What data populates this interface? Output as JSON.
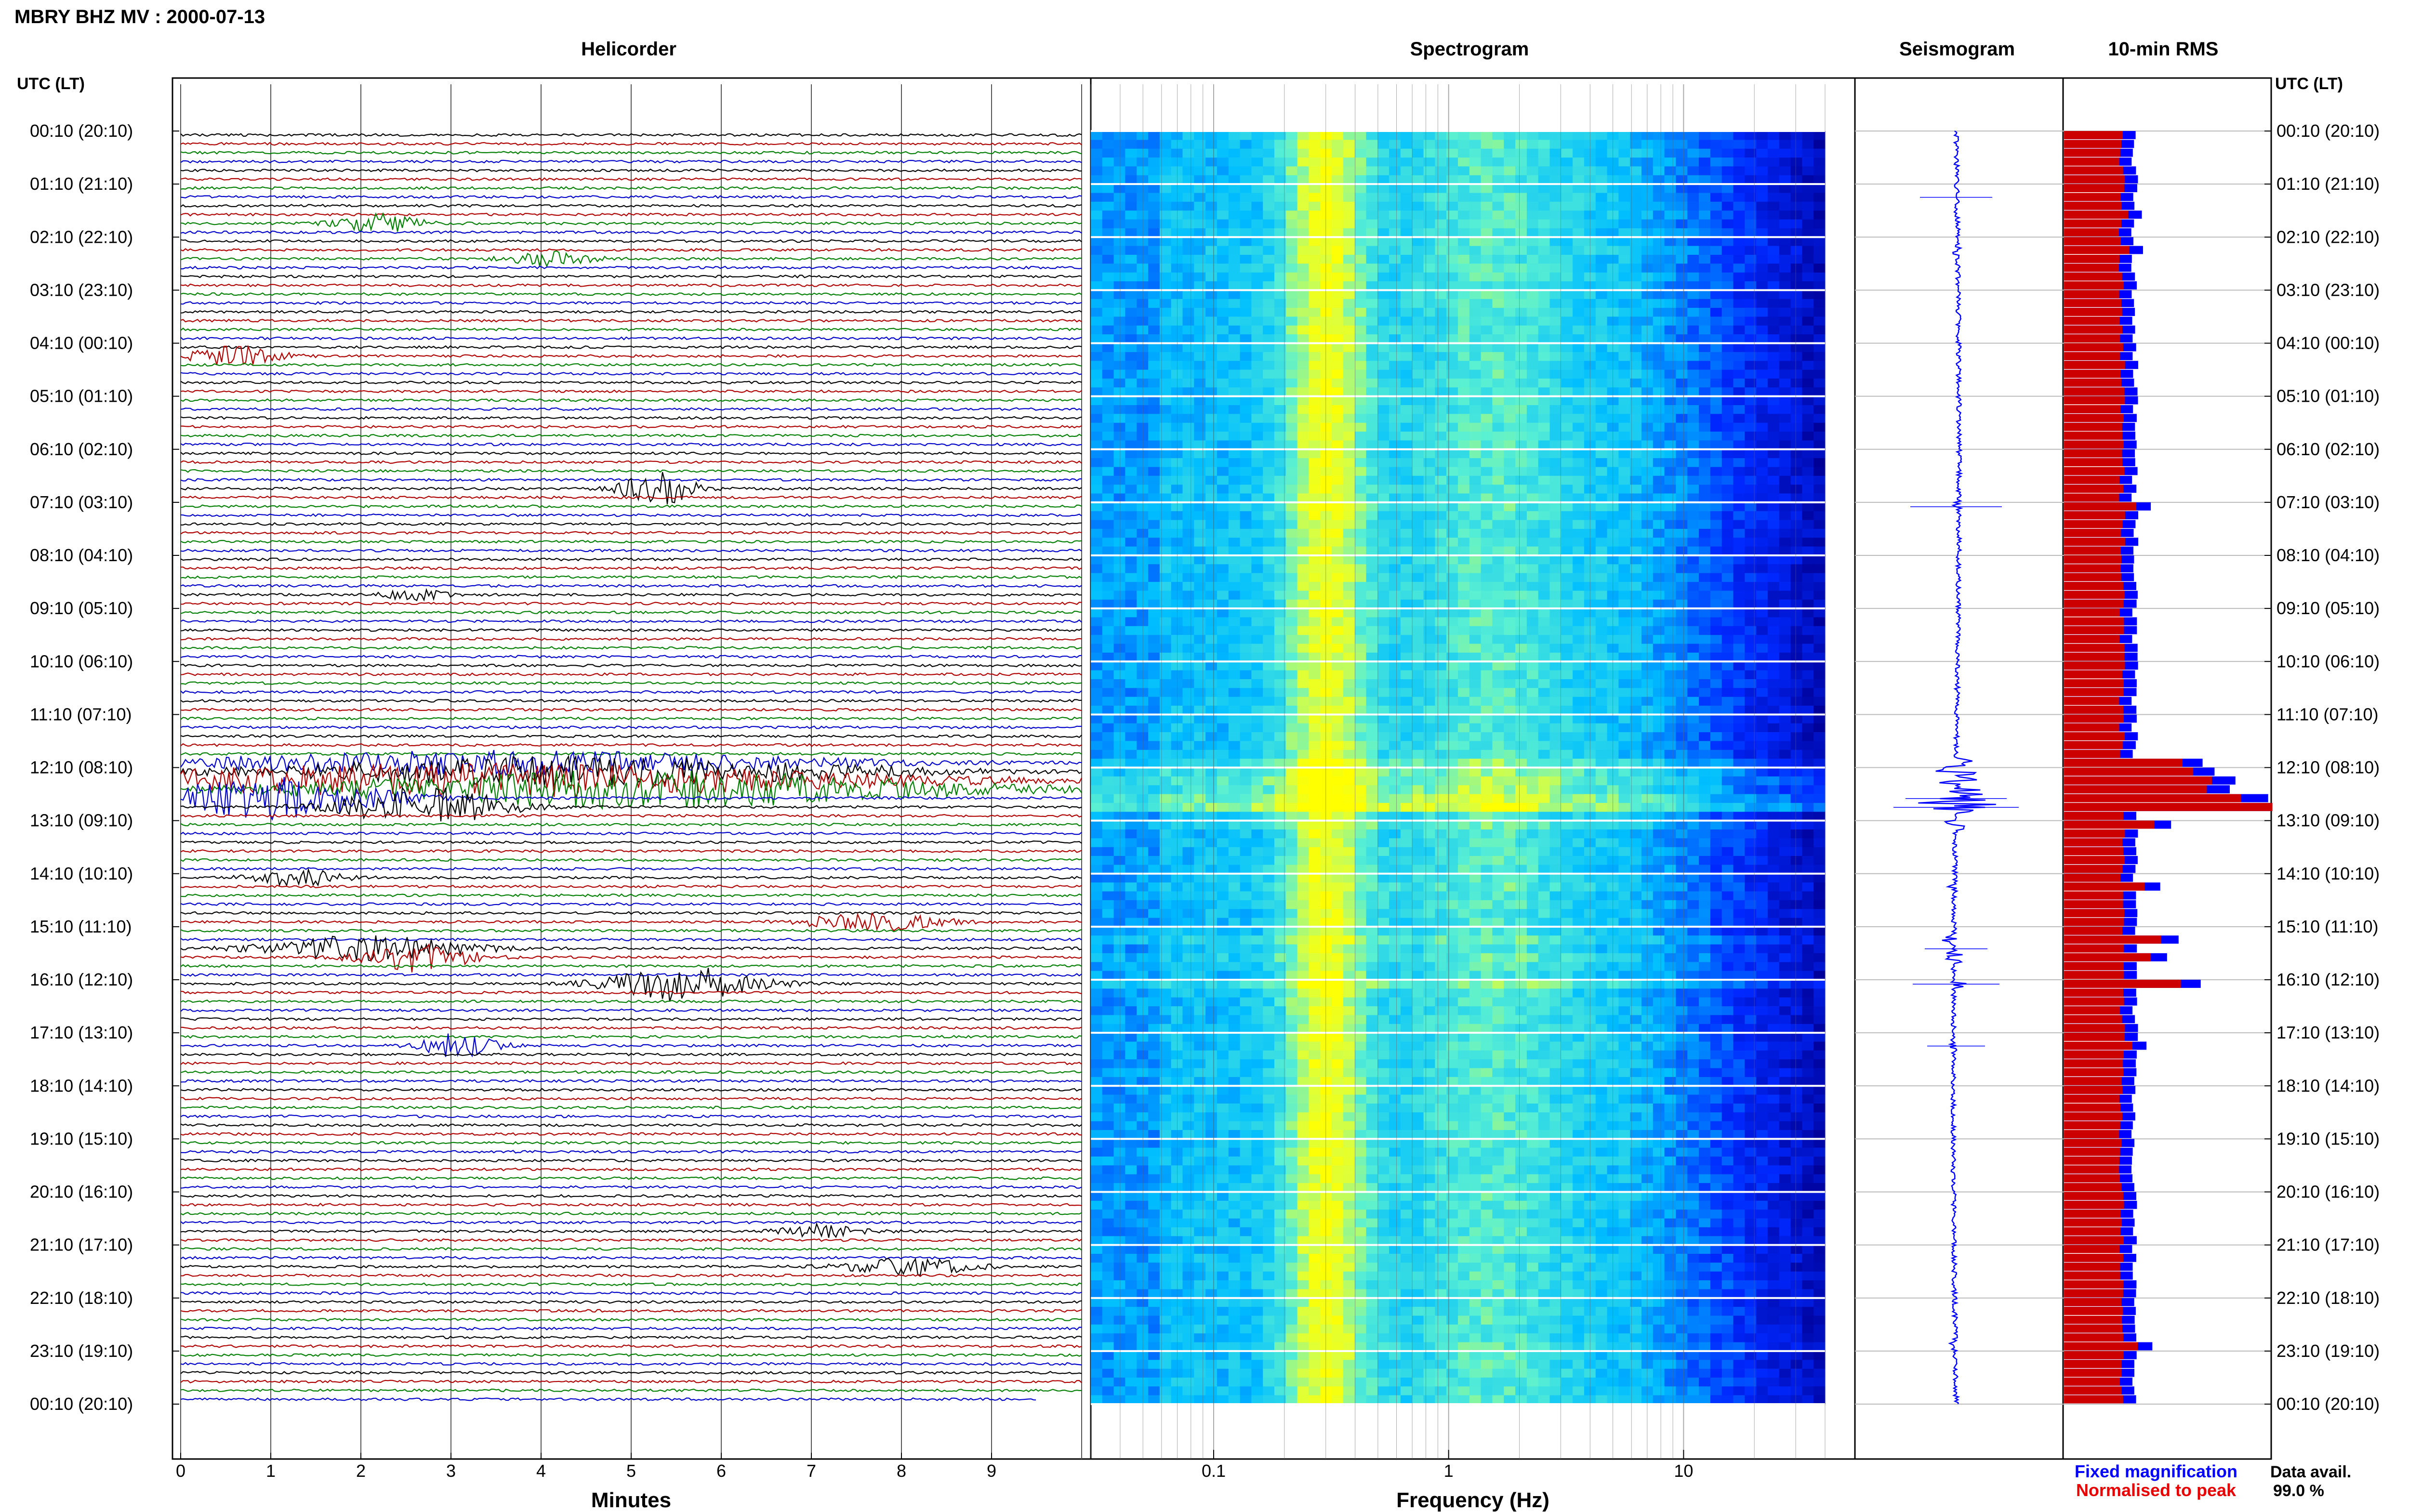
{
  "title": "MBRY BHZ MV : 2000-07-13",
  "panels": {
    "helicorder": "Helicorder",
    "spectrogram": "Spectrogram",
    "seismogram": "Seismogram",
    "rms": "10-min RMS"
  },
  "axis": {
    "time_header_left": "UTC (LT)",
    "time_header_right": "UTC (LT)",
    "time_labels": [
      "00:10 (20:10)",
      "01:10 (21:10)",
      "02:10 (22:10)",
      "03:10 (23:10)",
      "04:10 (00:10)",
      "05:10 (01:10)",
      "06:10 (02:10)",
      "07:10 (03:10)",
      "08:10 (04:10)",
      "09:10 (05:10)",
      "10:10 (06:10)",
      "11:10 (07:10)",
      "12:10 (08:10)",
      "13:10 (09:10)",
      "14:10 (10:10)",
      "15:10 (11:10)",
      "16:10 (12:10)",
      "17:10 (13:10)",
      "18:10 (14:10)",
      "19:10 (15:10)",
      "20:10 (16:10)",
      "21:10 (17:10)",
      "22:10 (18:10)",
      "23:10 (19:10)",
      "00:10 (20:10)"
    ],
    "minutes_label": "Minutes",
    "minutes_ticks": [
      "0",
      "1",
      "2",
      "3",
      "4",
      "5",
      "6",
      "7",
      "8",
      "9"
    ],
    "frequency_label": "Frequency (Hz)",
    "frequency_ticks": [
      "0.1",
      "1",
      "10"
    ]
  },
  "legend": {
    "fixed": "Fixed magnification",
    "normalised": "Normalised to peak",
    "fixed_color": "#0000ff",
    "normalised_color": "#e60000"
  },
  "availability": {
    "label": "Data avail.",
    "value": "99.0 %"
  },
  "colors": {
    "trace_cycle": [
      "#000000",
      "#b00000",
      "#008000",
      "#0000cc"
    ],
    "rms_fixed": "#0000ff",
    "rms_normalised": "#cc0000"
  },
  "chart_data": {
    "type": "heatmap",
    "title": "MBRY BHZ MV : 2000-07-13",
    "rows_per_day": 144,
    "rms_normalised_percent": [
      {
        "window_index": 1,
        "value": 28
      },
      {
        "window_index": 9,
        "value": 30
      },
      {
        "window_index": 13,
        "value": 33
      },
      {
        "window_index": 28,
        "value": 28
      },
      {
        "window_index": 42,
        "value": 36
      },
      {
        "window_index": 71,
        "value": 56
      },
      {
        "window_index": 72,
        "value": 62
      },
      {
        "window_index": 73,
        "value": 72
      },
      {
        "window_index": 74,
        "value": 70
      },
      {
        "window_index": 75,
        "value": 86
      },
      {
        "window_index": 76,
        "value": 100
      },
      {
        "window_index": 78,
        "value": 45
      },
      {
        "window_index": 85,
        "value": 38
      },
      {
        "window_index": 91,
        "value": 48
      },
      {
        "window_index": 93,
        "value": 42
      },
      {
        "window_index": 96,
        "value": 56
      },
      {
        "window_index": 103,
        "value": 32
      },
      {
        "window_index": 137,
        "value": 35
      }
    ],
    "rms_typical_percent": 28,
    "spectrogram_frequency_range_hz": [
      0.03,
      40
    ],
    "spectrogram_peak_band_hz": [
      0.2,
      0.4
    ],
    "frequency_scale": "log",
    "helicorder_minutes_range": [
      0,
      10
    ]
  }
}
